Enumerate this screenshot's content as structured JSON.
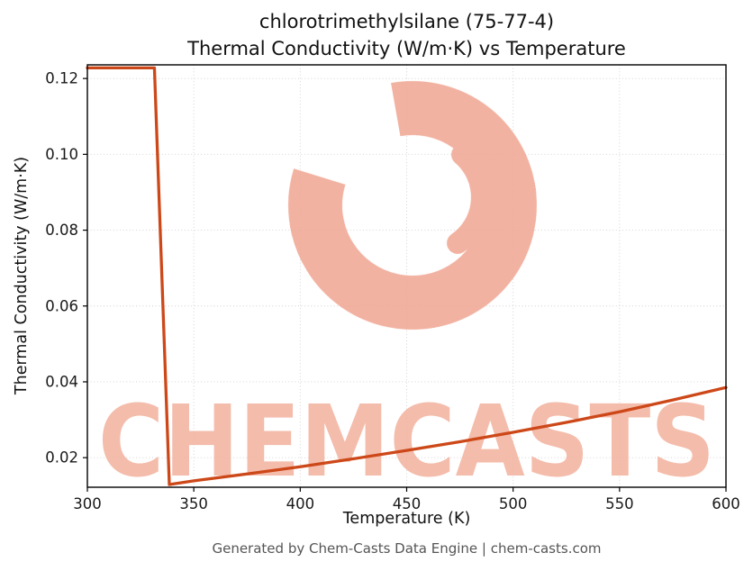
{
  "title": {
    "line1": "chlorotrimethylsilane (75-77-4)",
    "line2": "Thermal Conductivity (W/m·K) vs Temperature"
  },
  "footer": "Generated by Chem-Casts Data Engine | chem-casts.com",
  "watermark": {
    "text": "CHEMCASTS",
    "text_color": "#f3b09c",
    "logo_color": "#f0a591"
  },
  "chart_data": {
    "type": "line",
    "title": "chlorotrimethylsilane (75-77-4) Thermal Conductivity (W/m·K) vs Temperature",
    "xlabel": "Temperature (K)",
    "ylabel": "Thermal Conductivity (W/m·K)",
    "xlim": [
      300,
      600
    ],
    "ylim": [
      0.0122,
      0.1236
    ],
    "x_ticks": [
      300,
      350,
      400,
      450,
      500,
      550,
      600
    ],
    "y_ticks": [
      0.02,
      0.04,
      0.06,
      0.08,
      0.1,
      0.12
    ],
    "grid": true,
    "grid_color": "#cfcfcf",
    "line_color": "#cd4819",
    "series": [
      {
        "name": "thermal-conductivity",
        "x": [
          300,
          331.5,
          338.5,
          350,
          375,
          400,
          425,
          450,
          475,
          500,
          525,
          550,
          575,
          600
        ],
        "y": [
          0.1228,
          0.1228,
          0.0129,
          0.0139,
          0.0157,
          0.0176,
          0.0197,
          0.0219,
          0.0242,
          0.0267,
          0.0293,
          0.0321,
          0.0352,
          0.0385
        ]
      }
    ]
  }
}
